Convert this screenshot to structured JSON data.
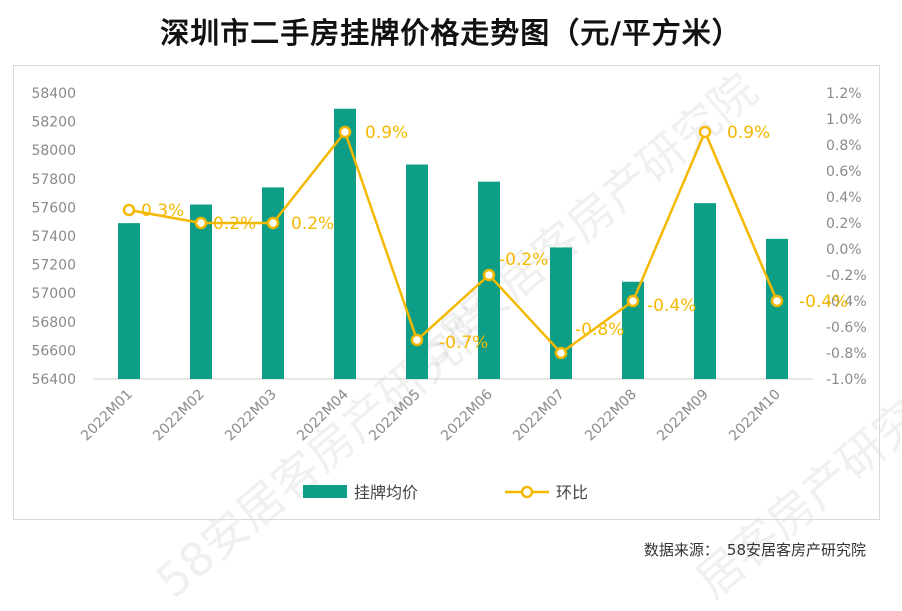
{
  "title": "深圳市二手房挂牌价格走势图（元/平方米）",
  "source": {
    "label": "数据来源：",
    "value": "58安居客房产研究院"
  },
  "watermarks": [
    "58安居客房产研究院",
    "58安居客房产研究院",
    "居客房产研究院"
  ],
  "colors": {
    "bar": "#0e9e86",
    "line": "#f5b800",
    "axis_text": "#8a8a8a",
    "label_text": "#f5b800"
  },
  "chart_data": {
    "type": "bar+line",
    "categories": [
      "2022M01",
      "2022M02",
      "2022M03",
      "2022M04",
      "2022M05",
      "2022M06",
      "2022M07",
      "2022M08",
      "2022M09",
      "2022M10"
    ],
    "series": [
      {
        "name": "挂牌均价",
        "type": "bar",
        "axis": "left",
        "values": [
          57490,
          57620,
          57740,
          58290,
          57900,
          57780,
          57320,
          57080,
          57630,
          57380
        ]
      },
      {
        "name": "环比",
        "type": "line",
        "axis": "right",
        "values": [
          0.3,
          0.2,
          0.2,
          0.9,
          -0.7,
          -0.2,
          -0.8,
          -0.4,
          0.9,
          -0.4
        ],
        "labels": [
          "0.3%",
          "0.2%",
          "0.2%",
          "0.9%",
          "-0.7%",
          "-0.2%",
          "-0.8%",
          "-0.4%",
          "0.9%",
          "-0.4%"
        ]
      }
    ],
    "y_left": {
      "min": 56400,
      "max": 58400,
      "step": 200,
      "ticks": [
        "56400",
        "56600",
        "56800",
        "57000",
        "57200",
        "57400",
        "57600",
        "57800",
        "58000",
        "58200",
        "58400"
      ]
    },
    "y_right": {
      "min": -1.0,
      "max": 1.2,
      "step": 0.2,
      "ticks": [
        "-1.0%",
        "-0.8%",
        "-0.6%",
        "-0.4%",
        "-0.2%",
        "0.0%",
        "0.2%",
        "0.4%",
        "0.6%",
        "0.8%",
        "1.0%",
        "1.2%"
      ]
    },
    "legend": {
      "position": "bottom",
      "items": [
        "挂牌均价",
        "环比"
      ]
    },
    "grid": false
  }
}
